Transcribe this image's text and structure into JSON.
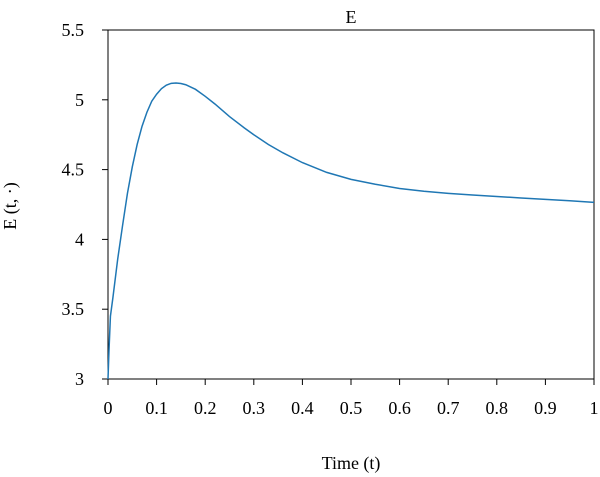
{
  "chart_data": {
    "type": "line",
    "title": "E",
    "xlabel": "Time (t)",
    "ylabel": "E (t, ·)",
    "xlim": [
      0,
      1
    ],
    "ylim": [
      3,
      5.5
    ],
    "xticks": [
      "0",
      "0.1",
      "0.2",
      "0.3",
      "0.4",
      "0.5",
      "0.6",
      "0.7",
      "0.8",
      "0.9",
      "1"
    ],
    "yticks": [
      "3",
      "3.5",
      "4",
      "4.5",
      "5",
      "5.5"
    ],
    "grid": false,
    "line_color": "#1f77b4",
    "series": [
      {
        "x": [
          0,
          0.002,
          0.005,
          0.01,
          0.02,
          0.03,
          0.04,
          0.05,
          0.06,
          0.07,
          0.08,
          0.09,
          0.1,
          0.11,
          0.12,
          0.13,
          0.14,
          0.15,
          0.16,
          0.18,
          0.2,
          0.22,
          0.25,
          0.28,
          0.3,
          0.33,
          0.36,
          0.4,
          0.45,
          0.5,
          0.55,
          0.6,
          0.65,
          0.7,
          0.75,
          0.8,
          0.85,
          0.9,
          0.95,
          1.0
        ],
        "values": [
          3.0,
          3.2,
          3.45,
          3.58,
          3.86,
          4.1,
          4.33,
          4.52,
          4.68,
          4.81,
          4.91,
          4.99,
          5.04,
          5.08,
          5.105,
          5.118,
          5.12,
          5.117,
          5.108,
          5.075,
          5.025,
          4.97,
          4.88,
          4.8,
          4.75,
          4.68,
          4.62,
          4.55,
          4.48,
          4.43,
          4.395,
          4.365,
          4.345,
          4.33,
          4.318,
          4.307,
          4.297,
          4.287,
          4.277,
          4.265
        ]
      }
    ]
  }
}
